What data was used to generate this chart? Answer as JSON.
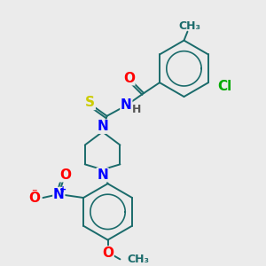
{
  "background_color": "#ebebeb",
  "atom_colors": {
    "O": "#ff0000",
    "N": "#0000ff",
    "S": "#cccc00",
    "Cl": "#00aa00",
    "C": "#1a6b6b",
    "H": "#555555"
  },
  "bond_color": "#1a6b6b",
  "label_fontsize": 11,
  "small_fontsize": 9
}
